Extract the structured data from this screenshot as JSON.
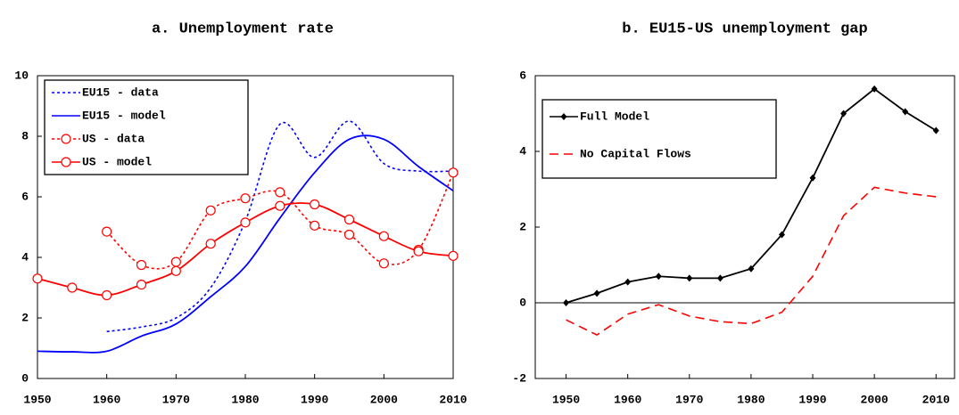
{
  "chart_data": [
    {
      "type": "line",
      "title": "a.   Unemployment rate",
      "xlim": [
        1950,
        2010
      ],
      "xticks": [
        1950,
        1960,
        1970,
        1980,
        1990,
        2000,
        2010
      ],
      "ylim": [
        0,
        10
      ],
      "yticks": [
        0,
        2,
        4,
        6,
        8,
        10
      ],
      "smooth": true,
      "series": [
        {
          "name": "EU15 - data",
          "color": "#0000ff",
          "dash": "dotted",
          "marker": "none",
          "x": [
            1960,
            1965,
            1970,
            1975,
            1980,
            1985,
            1990,
            1995,
            2000,
            2005,
            2010
          ],
          "values": [
            1.55,
            1.7,
            2.0,
            3.0,
            5.2,
            8.4,
            7.3,
            8.5,
            7.1,
            6.85,
            6.85
          ]
        },
        {
          "name": "EU15 - model",
          "color": "#0000ff",
          "dash": "solid",
          "marker": "none",
          "x": [
            1950,
            1955,
            1960,
            1965,
            1970,
            1975,
            1980,
            1985,
            1990,
            1995,
            2000,
            2005,
            2010
          ],
          "values": [
            0.9,
            0.88,
            0.9,
            1.4,
            1.8,
            2.7,
            3.7,
            5.3,
            6.8,
            7.9,
            7.9,
            7.0,
            6.2
          ]
        },
        {
          "name": "US - data",
          "color": "#ff0000",
          "dash": "dotted",
          "marker": "circle",
          "x": [
            1960,
            1965,
            1970,
            1975,
            1980,
            1985,
            1990,
            1995,
            2000,
            2005,
            2010
          ],
          "values": [
            4.85,
            3.75,
            3.85,
            5.55,
            5.95,
            6.15,
            5.05,
            4.75,
            3.8,
            4.25,
            6.8
          ]
        },
        {
          "name": "US - model",
          "color": "#ff0000",
          "dash": "solid",
          "marker": "circle",
          "x": [
            1950,
            1955,
            1960,
            1965,
            1970,
            1975,
            1980,
            1985,
            1990,
            1995,
            2000,
            2005,
            2010
          ],
          "values": [
            3.3,
            3.0,
            2.75,
            3.1,
            3.55,
            4.45,
            5.15,
            5.7,
            5.75,
            5.25,
            4.7,
            4.2,
            4.05
          ]
        }
      ]
    },
    {
      "type": "line",
      "title": "b.   EU15-US unemployment gap",
      "xlim": [
        1945,
        2013
      ],
      "xticks": [
        1950,
        1960,
        1970,
        1980,
        1990,
        2000,
        2010
      ],
      "ylim": [
        -2,
        6
      ],
      "yticks": [
        -2,
        0,
        2,
        4,
        6
      ],
      "smooth": false,
      "series": [
        {
          "name": "Full Model",
          "color": "#000000",
          "dash": "solid",
          "marker": "diamond",
          "x": [
            1950,
            1955,
            1960,
            1965,
            1970,
            1975,
            1980,
            1985,
            1990,
            1995,
            2000,
            2005,
            2010
          ],
          "values": [
            0,
            0.25,
            0.55,
            0.7,
            0.65,
            0.65,
            0.9,
            1.8,
            3.3,
            5.0,
            5.65,
            5.05,
            4.55
          ]
        },
        {
          "name": "No Capital Flows",
          "color": "#ff0000",
          "dash": "dashed",
          "marker": "none",
          "x": [
            1950,
            1955,
            1960,
            1965,
            1970,
            1975,
            1980,
            1985,
            1990,
            1995,
            2000,
            2005,
            2010
          ],
          "values": [
            -0.45,
            -0.85,
            -0.3,
            -0.05,
            -0.35,
            -0.5,
            -0.55,
            -0.25,
            0.7,
            2.3,
            3.05,
            2.9,
            2.8
          ]
        }
      ]
    }
  ]
}
